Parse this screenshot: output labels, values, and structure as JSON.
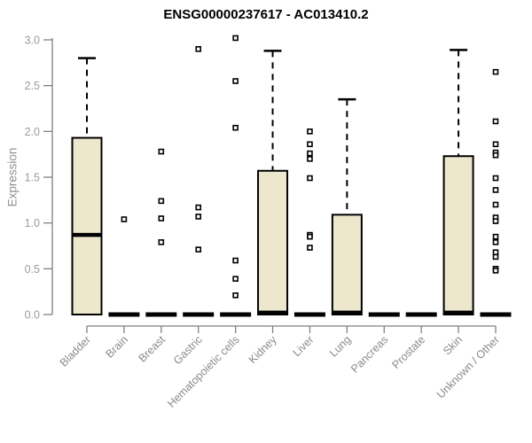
{
  "figure": {
    "title": "ENSG00000237617 - AC013410.2",
    "background": "#ffffff"
  },
  "chart_data": {
    "type": "boxplot",
    "title": "ENSG00000237617 - AC013410.2",
    "xlabel": "",
    "ylabel": "Expression",
    "ylim": [
      0,
      3.0
    ],
    "yticks": [
      0.0,
      0.5,
      1.0,
      1.5,
      2.0,
      2.5,
      3.0
    ],
    "grid": false,
    "legend": "none",
    "categories": [
      "Bladder",
      "Brain",
      "Breast",
      "Gastric",
      "Hematopoietic cells",
      "Kidney",
      "Liver",
      "Lung",
      "Pancreas",
      "Prostate",
      "Skin",
      "Unknown / Other"
    ],
    "series": [
      {
        "name": "Bladder",
        "q1": 0,
        "median": 0.87,
        "q3": 1.93,
        "whisker_low": 0,
        "whisker_high": 2.8,
        "outliers": []
      },
      {
        "name": "Brain",
        "q1": 0,
        "median": 0,
        "q3": 0,
        "whisker_low": 0,
        "whisker_high": 0,
        "outliers": [
          1.04
        ]
      },
      {
        "name": "Breast",
        "q1": 0,
        "median": 0,
        "q3": 0,
        "whisker_low": 0,
        "whisker_high": 0,
        "outliers": [
          1.78,
          1.24,
          1.05,
          0.79
        ]
      },
      {
        "name": "Gastric",
        "q1": 0,
        "median": 0,
        "q3": 0,
        "whisker_low": 0,
        "whisker_high": 0,
        "outliers": [
          2.9,
          1.17,
          1.07,
          0.71
        ]
      },
      {
        "name": "Hematopoietic cells",
        "q1": 0,
        "median": 0,
        "q3": 0,
        "whisker_low": 0,
        "whisker_high": 0,
        "outliers": [
          3.02,
          2.55,
          2.04,
          0.59,
          0.39,
          0.21
        ]
      },
      {
        "name": "Kidney",
        "q1": 0,
        "median": 0.02,
        "q3": 1.57,
        "whisker_low": 0,
        "whisker_high": 2.88,
        "outliers": []
      },
      {
        "name": "Liver",
        "q1": 0,
        "median": 0,
        "q3": 0,
        "whisker_low": 0,
        "whisker_high": 0,
        "outliers": [
          2.0,
          1.86,
          1.76,
          1.7,
          1.49,
          0.87,
          0.85,
          0.73
        ]
      },
      {
        "name": "Lung",
        "q1": 0,
        "median": 0.02,
        "q3": 1.09,
        "whisker_low": 0,
        "whisker_high": 2.35,
        "outliers": []
      },
      {
        "name": "Pancreas",
        "q1": 0,
        "median": 0,
        "q3": 0,
        "whisker_low": 0,
        "whisker_high": 0,
        "outliers": []
      },
      {
        "name": "Prostate",
        "q1": 0,
        "median": 0,
        "q3": 0,
        "whisker_low": 0,
        "whisker_high": 0,
        "outliers": []
      },
      {
        "name": "Skin",
        "q1": 0,
        "median": 0.02,
        "q3": 1.73,
        "whisker_low": 0,
        "whisker_high": 2.89,
        "outliers": []
      },
      {
        "name": "Unknown / Other",
        "q1": 0,
        "median": 0,
        "q3": 0,
        "whisker_low": 0,
        "whisker_high": 0,
        "outliers": [
          2.65,
          2.11,
          1.86,
          1.77,
          1.74,
          1.49,
          1.36,
          1.2,
          1.06,
          1.02,
          0.85,
          0.79,
          0.68,
          0.63,
          0.5,
          0.48
        ]
      }
    ],
    "style": {
      "box_fill": "#ECE7CD",
      "box_border": "#000000",
      "median_color": "#000000",
      "whisker_color": "#000000",
      "flat_bar_color": "#000000",
      "outlier_shape": "open-square",
      "outlier_color": "#000000",
      "axis_color": "#808080",
      "tick_label_color": "#9b9b9b",
      "category_label_color": "#8a8a8a",
      "title_color": "#000000",
      "background": "#ffffff"
    }
  }
}
